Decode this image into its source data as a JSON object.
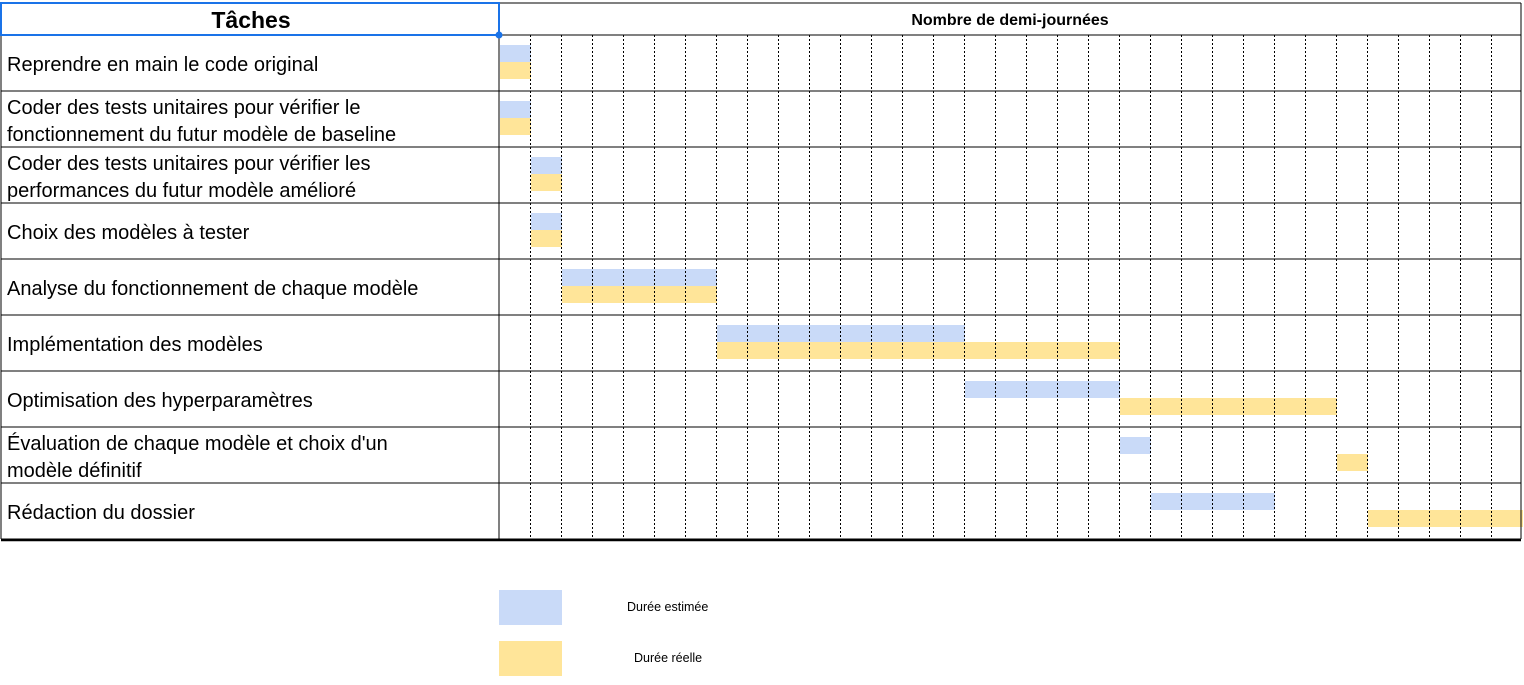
{
  "header": {
    "tasks_label": "Tâches",
    "timeline_label": "Nombre de demi-journées"
  },
  "colors": {
    "estimated": "#c9daf8",
    "actual": "#ffe599",
    "grid": "#000000",
    "selection": "#1a73e8"
  },
  "legend": {
    "estimated_label": "Durée estimée",
    "actual_label": "Durée réelle"
  },
  "chart_data": {
    "type": "gantt",
    "title": "",
    "xlabel": "Nombre de demi-journées",
    "x_unit": "demi-journée",
    "xlim": [
      0,
      33
    ],
    "series": [
      {
        "name": "Durée estimée",
        "key": "estimated"
      },
      {
        "name": "Durée réelle",
        "key": "actual"
      }
    ],
    "tasks": [
      {
        "name": "Reprendre en main le code original",
        "estimated": {
          "start": 0,
          "end": 1
        },
        "actual": {
          "start": 0,
          "end": 1
        }
      },
      {
        "name": "Coder des tests unitaires pour vérifier le fonctionnement du futur modèle de baseline",
        "lines": [
          "Coder des tests unitaires pour vérifier le",
          "fonctionnement du futur modèle de baseline"
        ],
        "estimated": {
          "start": 0,
          "end": 1
        },
        "actual": {
          "start": 0,
          "end": 1
        }
      },
      {
        "name": "Coder des tests unitaires pour vérifier les performances du futur modèle amélioré",
        "lines": [
          "Coder des tests unitaires pour vérifier les",
          "performances du futur modèle amélioré"
        ],
        "estimated": {
          "start": 1,
          "end": 2
        },
        "actual": {
          "start": 1,
          "end": 2
        }
      },
      {
        "name": "Choix des modèles à tester",
        "estimated": {
          "start": 1,
          "end": 2
        },
        "actual": {
          "start": 1,
          "end": 2
        }
      },
      {
        "name": "Analyse du fonctionnement de chaque modèle",
        "estimated": {
          "start": 2,
          "end": 7
        },
        "actual": {
          "start": 2,
          "end": 7
        }
      },
      {
        "name": "Implémentation des modèles",
        "estimated": {
          "start": 7,
          "end": 15
        },
        "actual": {
          "start": 7,
          "end": 20
        }
      },
      {
        "name": "Optimisation des hyperparamètres",
        "estimated": {
          "start": 15,
          "end": 20
        },
        "actual": {
          "start": 20,
          "end": 27
        }
      },
      {
        "name": "Évaluation de chaque modèle et choix d'un modèle définitif",
        "lines": [
          "Évaluation de chaque modèle et choix d'un",
          "modèle définitif"
        ],
        "estimated": {
          "start": 20,
          "end": 21
        },
        "actual": {
          "start": 27,
          "end": 28
        }
      },
      {
        "name": "Rédaction du dossier",
        "estimated": {
          "start": 21,
          "end": 25
        },
        "actual": {
          "start": 28,
          "end": 33
        }
      }
    ]
  }
}
